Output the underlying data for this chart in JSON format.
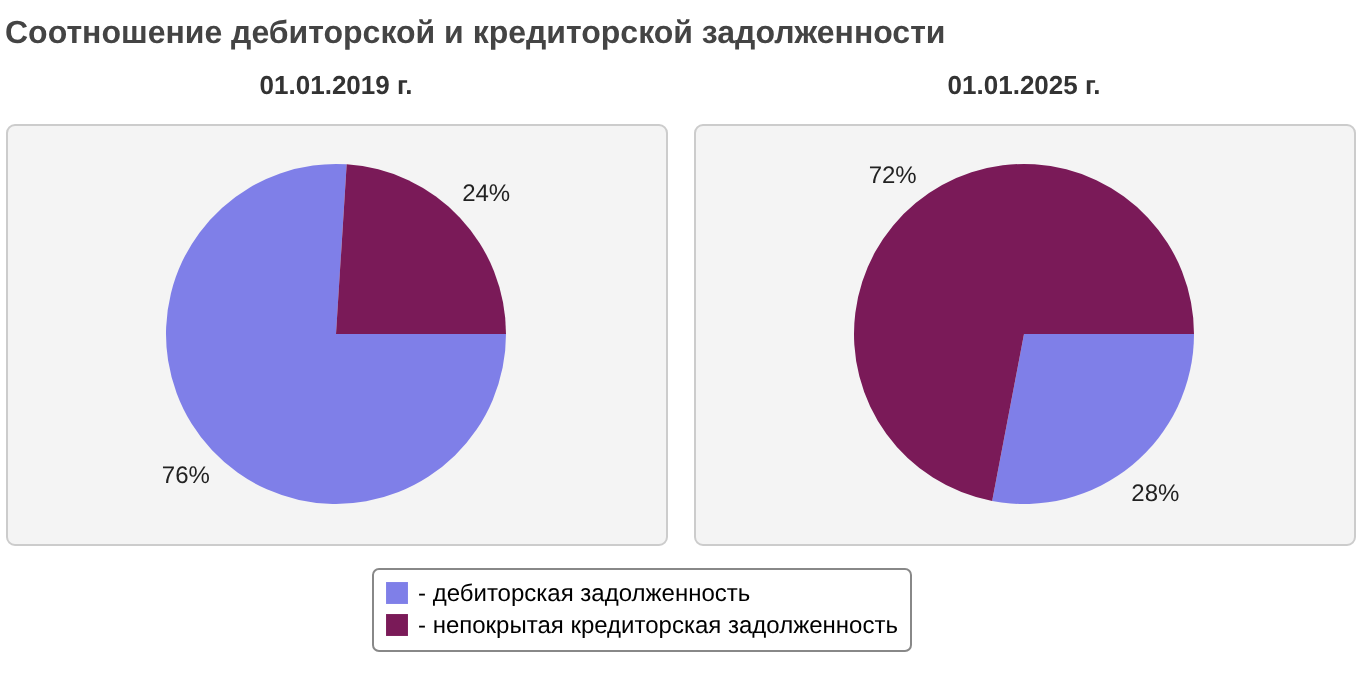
{
  "chart_data": [
    {
      "type": "pie",
      "title": "Соотношение дебиторской и кредиторской задолженности",
      "subtitle": "01.01.2019 г.",
      "categories": [
        "- дебиторская задолженность",
        "- непокрытая кредиторская задолженность"
      ],
      "values": [
        76,
        24
      ],
      "value_labels": [
        "76%",
        "24%"
      ],
      "colors": [
        "#7f7fe8",
        "#7a1a58"
      ],
      "legend": "bottom"
    },
    {
      "type": "pie",
      "subtitle": "01.01.2025 г.",
      "categories": [
        null,
        null
      ],
      "values": [
        28,
        72
      ],
      "value_labels": [
        "28%",
        "72%"
      ],
      "colors": [
        "#7f7fe8",
        "#7a1a58"
      ]
    }
  ]
}
